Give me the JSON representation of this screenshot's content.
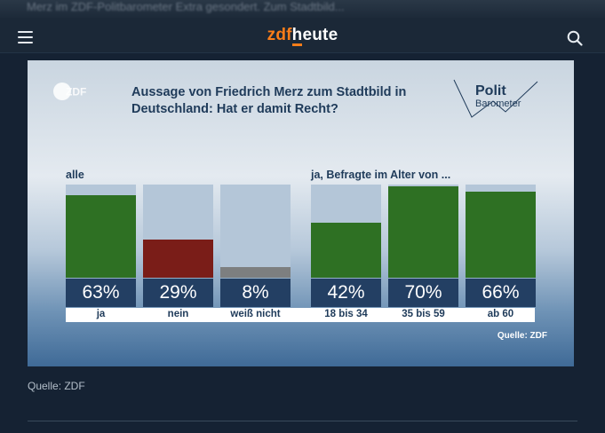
{
  "header": {
    "banner_text": "Merz im ZDF-Politbarometer Extra gesondert. Zum Stadtbild...",
    "logo_prefix": "zdf",
    "logo_suffix": "heute"
  },
  "graphic": {
    "broadcaster": "ZDF",
    "title": "Aussage von Friedrich Merz zum Stadtbild in Deutschland: Hat er damit Recht?",
    "brand_word1": "Polit",
    "brand_word2": "Barometer",
    "group_all_label": "alle",
    "group_age_label": "ja, Befragte im Alter von ...",
    "source": "Quelle: ZDF"
  },
  "chart_data": {
    "type": "bar",
    "title": "Aussage von Friedrich Merz zum Stadtbild in Deutschland: Hat er damit Recht?",
    "categories": [
      "ja",
      "nein",
      "weiß nicht",
      "18 bis 34",
      "35 bis 59",
      "ab 60"
    ],
    "values": [
      63,
      29,
      8,
      42,
      70,
      66
    ],
    "value_labels": [
      "63%",
      "29%",
      "8%",
      "42%",
      "70%",
      "66%"
    ],
    "groups": [
      "alle",
      "alle",
      "alle",
      "ja, Befragte im Alter von ...",
      "ja, Befragte im Alter von ...",
      "ja, Befragte im Alter von ..."
    ],
    "ylim": [
      0,
      70
    ],
    "colors": [
      "#2e7023",
      "#7a1d18",
      "#7d7f80",
      "#2e7023",
      "#2e7023",
      "#2e7023"
    ]
  },
  "caption": "Quelle: ZDF"
}
